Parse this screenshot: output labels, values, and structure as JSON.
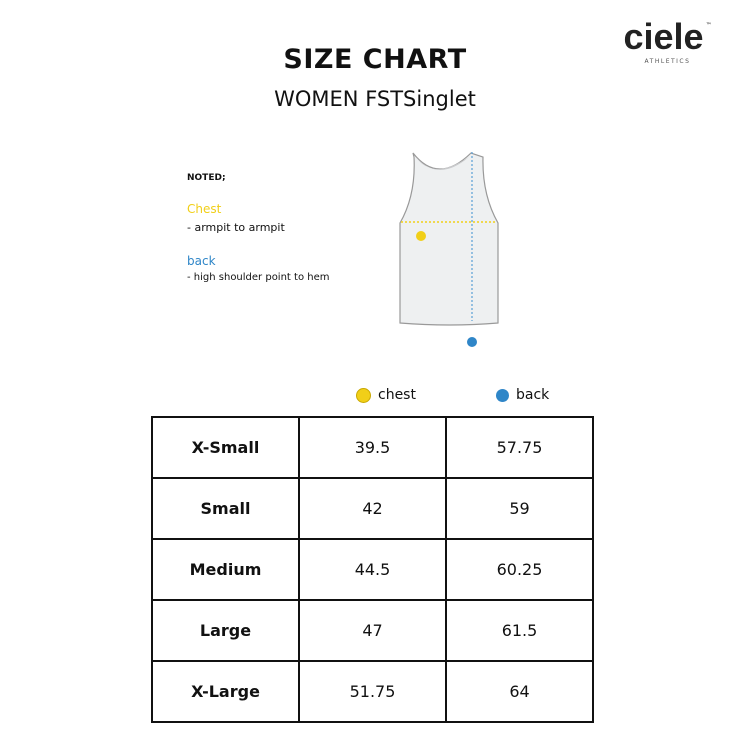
{
  "header": {
    "title": "SIZE CHART",
    "subtitle": "WOMEN FSTSinglet"
  },
  "logo": {
    "word": "ciele",
    "tm": "™",
    "tagline": "ATHLETICS"
  },
  "notes": {
    "heading": "NOTED;",
    "chest_label": "Chest",
    "chest_desc": "- armpit to armpit",
    "back_label": "back",
    "back_desc": "- high shoulder point to hem"
  },
  "colors": {
    "chest": "#f1cf18",
    "back": "#2f86c8"
  },
  "legend": {
    "chest": "chest",
    "back": "back"
  },
  "table": {
    "columns": [
      "",
      "chest",
      "back"
    ],
    "rows": [
      {
        "size": "X-Small",
        "chest": "39.5",
        "back": "57.75"
      },
      {
        "size": "Small",
        "chest": "42",
        "back": "59"
      },
      {
        "size": "Medium",
        "chest": "44.5",
        "back": "60.25"
      },
      {
        "size": "Large",
        "chest": "47",
        "back": "61.5"
      },
      {
        "size": "X-Large",
        "chest": "51.75",
        "back": "64"
      }
    ]
  }
}
